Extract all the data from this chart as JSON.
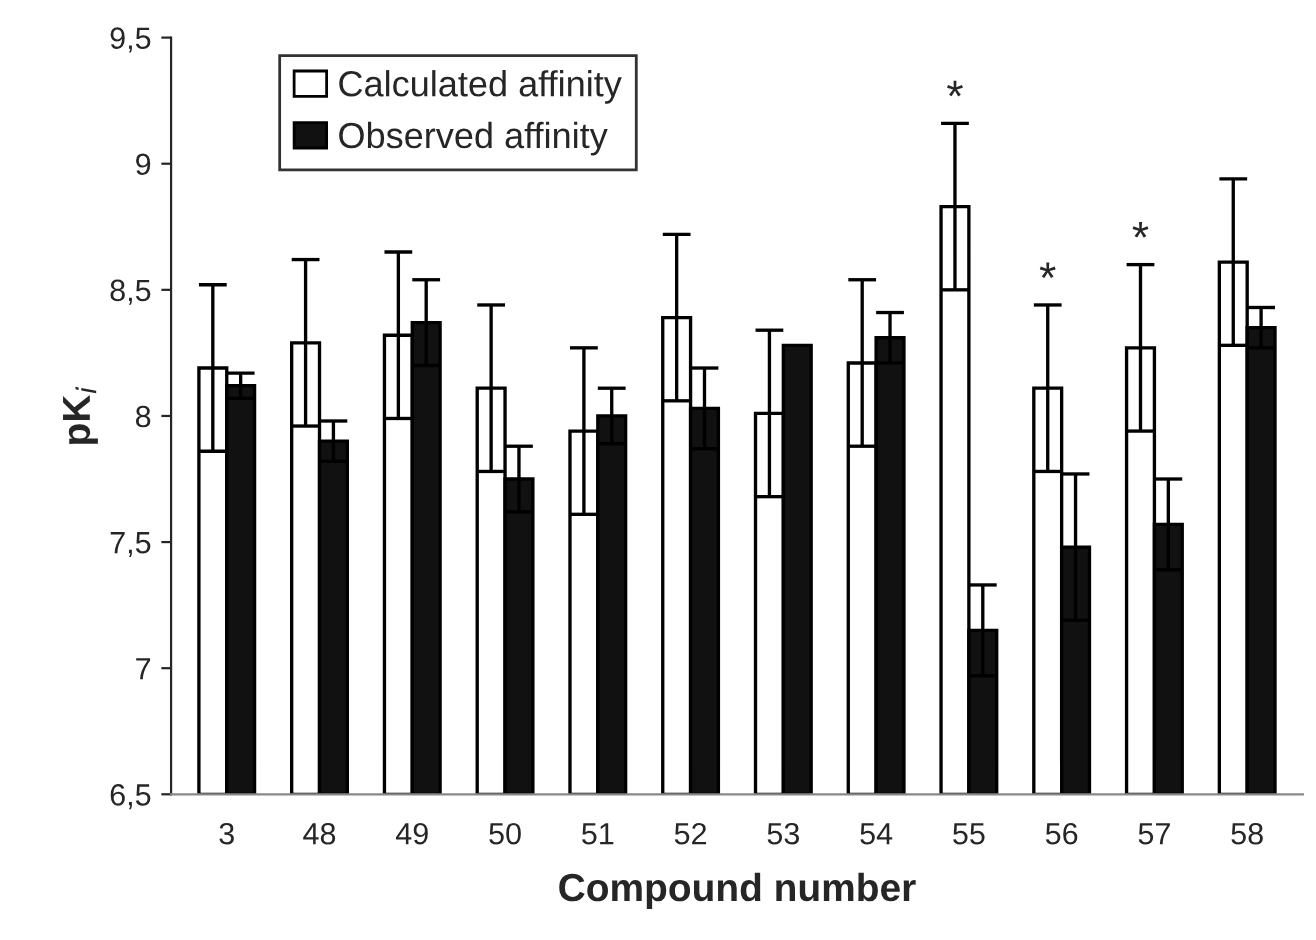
{
  "chart_data": {
    "type": "bar",
    "xlabel": "Compound number",
    "ylabel": "pK$_{i}$",
    "categories": [
      "3",
      "48",
      "49",
      "50",
      "51",
      "52",
      "53",
      "54",
      "55",
      "56",
      "57",
      "58"
    ],
    "series": [
      {
        "name": "Calculated affinity",
        "color": "#ffffff",
        "values": [
          8.19,
          8.29,
          8.32,
          8.11,
          7.94,
          8.39,
          8.01,
          8.21,
          8.83,
          8.11,
          8.27,
          8.61
        ],
        "errors": [
          0.33,
          0.33,
          0.33,
          0.33,
          0.33,
          0.33,
          0.33,
          0.33,
          0.33,
          0.33,
          0.33,
          0.33
        ]
      },
      {
        "name": "Observed affinity",
        "color": "#111111",
        "values": [
          8.12,
          7.9,
          8.37,
          7.75,
          8.0,
          8.03,
          8.28,
          8.31,
          7.15,
          7.48,
          7.57,
          8.35
        ],
        "errors": [
          0.05,
          0.08,
          0.17,
          0.13,
          0.11,
          0.16,
          null,
          0.1,
          0.18,
          0.29,
          0.18,
          0.08
        ]
      }
    ],
    "ylim": [
      6.5,
      9.5
    ],
    "yticks": [
      {
        "value": 6.5,
        "label": "6,5"
      },
      7,
      {
        "value": 7.5,
        "label": "7,5"
      },
      8,
      {
        "value": 8.5,
        "label": "8,5"
      },
      9,
      {
        "value": 9.5,
        "label": "9,5"
      }
    ],
    "annotations": [
      {
        "text": "*",
        "x": "55",
        "y": 9.16
      },
      {
        "text": "*",
        "x": "56",
        "y": 8.44
      },
      {
        "text": "*",
        "x": "57",
        "y": 8.6
      }
    ],
    "legend": "top left",
    "grid": false
  }
}
